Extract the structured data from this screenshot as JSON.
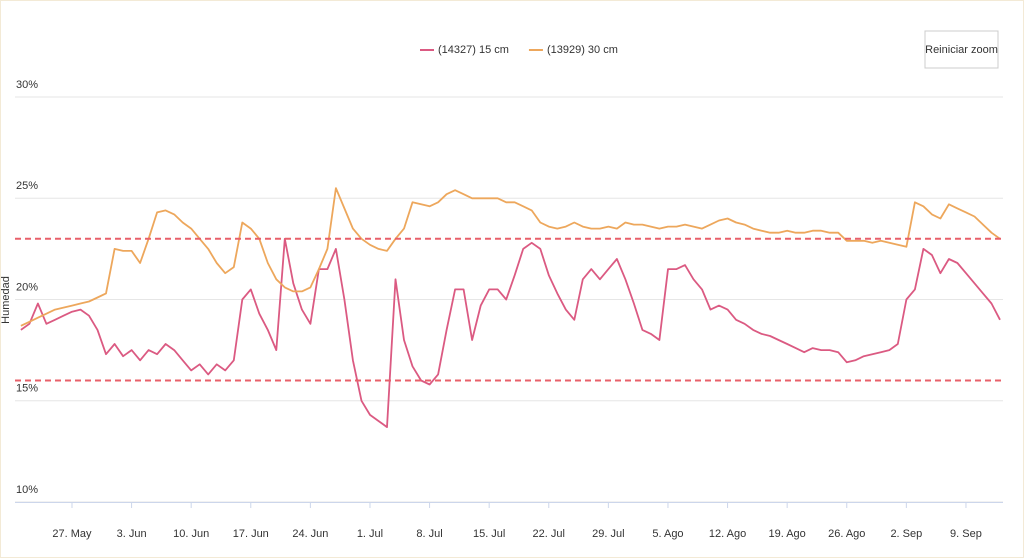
{
  "chart_data": {
    "type": "line",
    "y_label": "Humedad",
    "reset_button": "Reiniciar zoom",
    "categories": [
      null,
      null,
      null,
      null,
      null,
      null,
      "27. May",
      null,
      null,
      null,
      null,
      null,
      null,
      "3. Jun",
      null,
      null,
      null,
      null,
      null,
      null,
      "10. Jun",
      null,
      null,
      null,
      null,
      null,
      null,
      "17. Jun",
      null,
      null,
      null,
      null,
      null,
      null,
      "24. Jun",
      null,
      null,
      null,
      null,
      null,
      null,
      "1. Jul",
      null,
      null,
      null,
      null,
      null,
      null,
      "8. Jul",
      null,
      null,
      null,
      null,
      null,
      null,
      "15. Jul",
      null,
      null,
      null,
      null,
      null,
      null,
      "22. Jul",
      null,
      null,
      null,
      null,
      null,
      null,
      "29. Jul",
      null,
      null,
      null,
      null,
      null,
      null,
      "5. Ago",
      null,
      null,
      null,
      null,
      null,
      null,
      "12. Ago",
      null,
      null,
      null,
      null,
      null,
      null,
      "19. Ago",
      null,
      null,
      null,
      null,
      null,
      null,
      "26. Ago",
      null,
      null,
      null,
      null,
      null,
      null,
      "2. Sep",
      null,
      null,
      null,
      null,
      null,
      null,
      "9. Sep",
      null,
      null,
      null,
      null
    ],
    "series": [
      {
        "name": "(14327) 15 cm",
        "color": "#db5a82",
        "values": [
          18.5,
          18.8,
          19.8,
          18.8,
          19.0,
          19.2,
          19.4,
          19.5,
          19.2,
          18.5,
          17.3,
          17.8,
          17.2,
          17.5,
          17.0,
          17.5,
          17.3,
          17.8,
          17.5,
          17.0,
          16.5,
          16.8,
          16.3,
          16.8,
          16.5,
          17.0,
          20.0,
          20.5,
          19.3,
          18.5,
          17.5,
          23.0,
          20.8,
          19.5,
          18.8,
          21.5,
          21.5,
          22.5,
          20.0,
          17.0,
          15.0,
          14.3,
          14.0,
          13.7,
          21.0,
          18.0,
          16.7,
          16.0,
          15.8,
          16.3,
          18.5,
          20.5,
          20.5,
          18.0,
          19.7,
          20.5,
          20.5,
          20.0,
          21.2,
          22.5,
          22.8,
          22.5,
          21.2,
          20.3,
          19.5,
          19.0,
          21.0,
          21.5,
          21.0,
          21.5,
          22.0,
          21.0,
          19.8,
          18.5,
          18.3,
          18.0,
          21.5,
          21.5,
          21.7,
          21.0,
          20.5,
          19.5,
          19.7,
          19.5,
          19.0,
          18.8,
          18.5,
          18.3,
          18.2,
          18.0,
          17.8,
          17.6,
          17.4,
          17.6,
          17.5,
          17.5,
          17.4,
          16.9,
          17.0,
          17.2,
          17.3,
          17.4,
          17.5,
          17.8,
          20.0,
          20.5,
          22.5,
          22.2,
          21.3,
          22.0,
          21.8,
          21.3,
          20.8,
          20.3,
          19.8,
          19.0
        ]
      },
      {
        "name": "(13929) 30 cm",
        "color": "#eda75c",
        "values": [
          18.7,
          18.9,
          19.1,
          19.3,
          19.5,
          19.6,
          19.7,
          19.8,
          19.9,
          20.1,
          20.3,
          22.5,
          22.4,
          22.4,
          21.8,
          23.0,
          24.3,
          24.4,
          24.2,
          23.8,
          23.5,
          23.0,
          22.5,
          21.8,
          21.3,
          21.6,
          23.8,
          23.5,
          23.0,
          21.8,
          21.0,
          20.6,
          20.4,
          20.4,
          20.6,
          21.5,
          22.5,
          25.5,
          24.5,
          23.5,
          23.0,
          22.7,
          22.5,
          22.4,
          23.0,
          23.5,
          24.8,
          24.7,
          24.6,
          24.8,
          25.2,
          25.4,
          25.2,
          25.0,
          25.0,
          25.0,
          25.0,
          24.8,
          24.8,
          24.6,
          24.4,
          23.8,
          23.6,
          23.5,
          23.6,
          23.8,
          23.6,
          23.5,
          23.5,
          23.6,
          23.5,
          23.8,
          23.7,
          23.7,
          23.6,
          23.5,
          23.6,
          23.6,
          23.7,
          23.6,
          23.5,
          23.7,
          23.9,
          24.0,
          23.8,
          23.7,
          23.5,
          23.4,
          23.3,
          23.3,
          23.4,
          23.3,
          23.3,
          23.4,
          23.4,
          23.3,
          23.3,
          22.9,
          22.9,
          22.9,
          22.8,
          22.9,
          22.8,
          22.7,
          22.6,
          24.8,
          24.6,
          24.2,
          24.0,
          24.7,
          24.5,
          24.3,
          24.1,
          23.7,
          23.3,
          23.0
        ]
      }
    ],
    "thresholds": [
      {
        "value": 23,
        "color": "#e8606a"
      },
      {
        "value": 16,
        "color": "#e8606a"
      }
    ],
    "ylim": [
      10,
      30
    ],
    "yticks": [
      {
        "value": 10,
        "label": "10%"
      },
      {
        "value": 15,
        "label": "15%"
      },
      {
        "value": 20,
        "label": "20%"
      },
      {
        "value": 25,
        "label": "25%"
      },
      {
        "value": 30,
        "label": "30%"
      }
    ],
    "grid": true
  }
}
